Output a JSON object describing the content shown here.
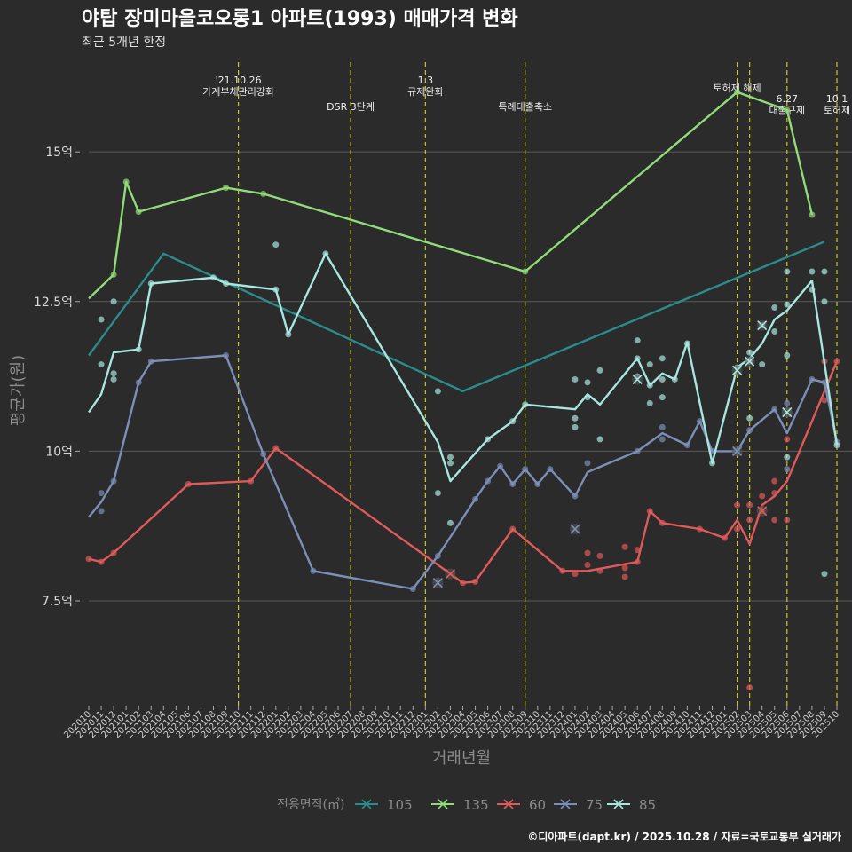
{
  "title": "야탑 장미마을코오롱1 아파트(1993) 매매가격 변화",
  "subtitle": "최근 5개년 한정",
  "caption": "©디아파트(dapt.kr) / 2025.10.28 / 자료=국토교통부 실거래가",
  "chart_data": {
    "type": "line",
    "xlabel": "거래년월",
    "ylabel": "평균가(원)",
    "ylim": [
      5.75,
      16.5
    ],
    "yticks": [
      7.5,
      10,
      12.5,
      15
    ],
    "ytick_labels": [
      "7.5억",
      "10억",
      "12.5억",
      "15억"
    ],
    "categories": [
      "202010",
      "202011",
      "202012",
      "202101",
      "202102",
      "202103",
      "202104",
      "202105",
      "202106",
      "202107",
      "202108",
      "202109",
      "202110",
      "202111",
      "202112",
      "202201",
      "202202",
      "202203",
      "202204",
      "202205",
      "202206",
      "202207",
      "202208",
      "202209",
      "202210",
      "202211",
      "202212",
      "202301",
      "202302",
      "202303",
      "202304",
      "202305",
      "202306",
      "202307",
      "202308",
      "202309",
      "202310",
      "202311",
      "202312",
      "202401",
      "202402",
      "202403",
      "202404",
      "202405",
      "202406",
      "202407",
      "202408",
      "202409",
      "202410",
      "202411",
      "202412",
      "202501",
      "202502",
      "202503",
      "202504",
      "202505",
      "202506",
      "202507",
      "202508",
      "202509",
      "202510"
    ],
    "events": [
      {
        "month": "202110",
        "label": "'21.10.26\n가계부채관리강화"
      },
      {
        "month": "202207",
        "label": "DSR 3단계"
      },
      {
        "month": "202301",
        "label": "1.3\n규제완화"
      },
      {
        "month": "202309",
        "label": "특례대출축소"
      },
      {
        "month": "202502",
        "label": "토허제 해제"
      },
      {
        "month": "202503",
        "label": ""
      },
      {
        "month": "202506",
        "label": "6.27\n대출규제"
      },
      {
        "month": "202510",
        "label": "10.1\n토허제"
      }
    ],
    "legend_title": "전용면적(㎡)",
    "series": [
      {
        "name": "105",
        "color": "#2a8c8c",
        "line": [
          [
            "202010",
            11.6
          ],
          [
            "202104",
            13.3
          ],
          [
            "202304",
            11.0
          ],
          [
            "202509",
            13.5
          ]
        ],
        "points": [],
        "markers": []
      },
      {
        "name": "135",
        "color": "#8fdc78",
        "line": [
          [
            "202010",
            12.55
          ],
          [
            "202012",
            12.95
          ],
          [
            "202101",
            14.5
          ],
          [
            "202102",
            14.0
          ],
          [
            "202109",
            14.4
          ],
          [
            "202112",
            14.3
          ],
          [
            "202309",
            13.0
          ],
          [
            "202502",
            16.0
          ],
          [
            "202506",
            15.7
          ],
          [
            "202508",
            13.95
          ]
        ],
        "points": [
          [
            "202012",
            12.95
          ],
          [
            "202101",
            14.5
          ],
          [
            "202102",
            14.0
          ],
          [
            "202109",
            14.4
          ],
          [
            "202112",
            14.3
          ],
          [
            "202309",
            13.0
          ],
          [
            "202502",
            16.0
          ],
          [
            "202506",
            15.7
          ],
          [
            "202508",
            13.95
          ]
        ],
        "markers": []
      },
      {
        "name": "60",
        "color": "#e05a5a",
        "line": [
          [
            "202010",
            8.2
          ],
          [
            "202011",
            8.15
          ],
          [
            "202012",
            8.3
          ],
          [
            "202106",
            9.45
          ],
          [
            "202111",
            9.5
          ],
          [
            "202201",
            10.05
          ],
          [
            "202304",
            7.8
          ],
          [
            "202305",
            7.82
          ],
          [
            "202308",
            8.7
          ],
          [
            "202312",
            8.0
          ],
          [
            "202402",
            8.0
          ],
          [
            "202406",
            8.15
          ],
          [
            "202407",
            9.0
          ],
          [
            "202408",
            8.8
          ],
          [
            "202411",
            8.7
          ],
          [
            "202501",
            8.55
          ],
          [
            "202502",
            8.85
          ],
          [
            "202503",
            8.45
          ],
          [
            "202504",
            9.1
          ],
          [
            "202505",
            9.25
          ],
          [
            "202506",
            9.5
          ],
          [
            "202510",
            11.5
          ]
        ],
        "points": [
          [
            "202010",
            8.2
          ],
          [
            "202011",
            8.15
          ],
          [
            "202012",
            8.3
          ],
          [
            "202106",
            9.45
          ],
          [
            "202111",
            9.5
          ],
          [
            "202201",
            10.05
          ],
          [
            "202304",
            7.8
          ],
          [
            "202305",
            7.82
          ],
          [
            "202308",
            8.7
          ],
          [
            "202312",
            8.0
          ],
          [
            "202401",
            7.95
          ],
          [
            "202402",
            8.1
          ],
          [
            "202402",
            8.3
          ],
          [
            "202403",
            8.0
          ],
          [
            "202403",
            8.25
          ],
          [
            "202405",
            7.9
          ],
          [
            "202405",
            8.05
          ],
          [
            "202405",
            8.4
          ],
          [
            "202406",
            8.15
          ],
          [
            "202406",
            8.35
          ],
          [
            "202407",
            9.0
          ],
          [
            "202408",
            8.8
          ],
          [
            "202411",
            8.7
          ],
          [
            "202501",
            8.55
          ],
          [
            "202502",
            8.7
          ],
          [
            "202502",
            9.1
          ],
          [
            "202503",
            6.05
          ],
          [
            "202503",
            8.85
          ],
          [
            "202503",
            9.1
          ],
          [
            "202504",
            9.0
          ],
          [
            "202504",
            9.25
          ],
          [
            "202505",
            8.85
          ],
          [
            "202505",
            9.3
          ],
          [
            "202505",
            9.5
          ],
          [
            "202506",
            8.85
          ],
          [
            "202506",
            10.2
          ],
          [
            "202509",
            10.85
          ],
          [
            "202509",
            11.5
          ],
          [
            "202510",
            11.5
          ]
        ],
        "markers": [
          [
            "202303",
            7.95
          ],
          [
            "202504",
            9.0
          ]
        ]
      },
      {
        "name": "75",
        "color": "#7b8fb8",
        "line": [
          [
            "202010",
            8.9
          ],
          [
            "202011",
            9.15
          ],
          [
            "202012",
            9.5
          ],
          [
            "202102",
            11.15
          ],
          [
            "202103",
            11.5
          ],
          [
            "202109",
            11.6
          ],
          [
            "202112",
            9.95
          ],
          [
            "202204",
            8.0
          ],
          [
            "202212",
            7.7
          ],
          [
            "202302",
            8.25
          ],
          [
            "202305",
            9.2
          ],
          [
            "202306",
            9.5
          ],
          [
            "202307",
            9.75
          ],
          [
            "202308",
            9.45
          ],
          [
            "202309",
            9.7
          ],
          [
            "202310",
            9.45
          ],
          [
            "202311",
            9.7
          ],
          [
            "202401",
            9.25
          ],
          [
            "202402",
            9.65
          ],
          [
            "202406",
            10.0
          ],
          [
            "202408",
            10.3
          ],
          [
            "202410",
            10.1
          ],
          [
            "202411",
            10.5
          ],
          [
            "202412",
            10.0
          ],
          [
            "202502",
            10.0
          ],
          [
            "202503",
            10.35
          ],
          [
            "202505",
            10.7
          ],
          [
            "202506",
            10.3
          ],
          [
            "202508",
            11.2
          ],
          [
            "202509",
            11.15
          ],
          [
            "202510",
            10.15
          ]
        ],
        "points": [
          [
            "202011",
            9.0
          ],
          [
            "202011",
            9.3
          ],
          [
            "202012",
            9.5
          ],
          [
            "202102",
            11.15
          ],
          [
            "202103",
            11.5
          ],
          [
            "202109",
            11.6
          ],
          [
            "202112",
            9.95
          ],
          [
            "202204",
            8.0
          ],
          [
            "202212",
            7.7
          ],
          [
            "202302",
            8.25
          ],
          [
            "202305",
            9.2
          ],
          [
            "202306",
            9.5
          ],
          [
            "202307",
            9.75
          ],
          [
            "202308",
            9.45
          ],
          [
            "202309",
            9.7
          ],
          [
            "202310",
            9.45
          ],
          [
            "202311",
            9.7
          ],
          [
            "202401",
            9.25
          ],
          [
            "202402",
            9.8
          ],
          [
            "202406",
            10.0
          ],
          [
            "202408",
            10.2
          ],
          [
            "202408",
            10.4
          ],
          [
            "202410",
            10.1
          ],
          [
            "202411",
            10.5
          ],
          [
            "202412",
            10.0
          ],
          [
            "202502",
            10.0
          ],
          [
            "202503",
            10.35
          ],
          [
            "202505",
            10.7
          ],
          [
            "202506",
            9.7
          ],
          [
            "202506",
            10.8
          ],
          [
            "202508",
            11.2
          ],
          [
            "202509",
            11.15
          ],
          [
            "202510",
            10.15
          ]
        ],
        "markers": [
          [
            "202302",
            7.8
          ],
          [
            "202401",
            8.7
          ],
          [
            "202502",
            10.0
          ],
          [
            "202506",
            10.65
          ]
        ]
      },
      {
        "name": "85",
        "color": "#a8e6e0",
        "line": [
          [
            "202010",
            10.65
          ],
          [
            "202011",
            10.95
          ],
          [
            "202012",
            11.65
          ],
          [
            "202102",
            11.7
          ],
          [
            "202103",
            12.8
          ],
          [
            "202108",
            12.9
          ],
          [
            "202109",
            12.8
          ],
          [
            "202201",
            12.7
          ],
          [
            "202202",
            11.95
          ],
          [
            "202205",
            13.3
          ],
          [
            "202302",
            10.15
          ],
          [
            "202303",
            9.5
          ],
          [
            "202306",
            10.2
          ],
          [
            "202308",
            10.5
          ],
          [
            "202309",
            10.78
          ],
          [
            "202401",
            10.7
          ],
          [
            "202402",
            10.95
          ],
          [
            "202403",
            10.78
          ],
          [
            "202406",
            11.55
          ],
          [
            "202407",
            11.1
          ],
          [
            "202408",
            11.3
          ],
          [
            "202409",
            11.2
          ],
          [
            "202410",
            11.82
          ],
          [
            "202412",
            9.8
          ],
          [
            "202502",
            11.4
          ],
          [
            "202503",
            11.55
          ],
          [
            "202504",
            11.8
          ],
          [
            "202505",
            12.2
          ],
          [
            "202506",
            12.35
          ],
          [
            "202508",
            12.85
          ],
          [
            "202510",
            10.1
          ]
        ],
        "points": [
          [
            "202011",
            11.45
          ],
          [
            "202011",
            12.2
          ],
          [
            "202012",
            11.2
          ],
          [
            "202012",
            11.3
          ],
          [
            "202012",
            12.5
          ],
          [
            "202102",
            11.7
          ],
          [
            "202103",
            12.8
          ],
          [
            "202108",
            12.9
          ],
          [
            "202109",
            12.8
          ],
          [
            "202201",
            12.7
          ],
          [
            "202201",
            13.45
          ],
          [
            "202202",
            11.95
          ],
          [
            "202205",
            13.3
          ],
          [
            "202302",
            9.3
          ],
          [
            "202302",
            11.0
          ],
          [
            "202303",
            9.8
          ],
          [
            "202303",
            9.9
          ],
          [
            "202303",
            8.8
          ],
          [
            "202306",
            10.2
          ],
          [
            "202308",
            10.5
          ],
          [
            "202309",
            10.78
          ],
          [
            "202401",
            10.4
          ],
          [
            "202401",
            10.55
          ],
          [
            "202401",
            11.2
          ],
          [
            "202402",
            10.9
          ],
          [
            "202402",
            11.15
          ],
          [
            "202403",
            10.2
          ],
          [
            "202403",
            11.35
          ],
          [
            "202406",
            11.55
          ],
          [
            "202406",
            11.85
          ],
          [
            "202406",
            11.25
          ],
          [
            "202407",
            10.8
          ],
          [
            "202407",
            11.1
          ],
          [
            "202407",
            11.45
          ],
          [
            "202408",
            10.9
          ],
          [
            "202408",
            11.2
          ],
          [
            "202408",
            11.55
          ],
          [
            "202409",
            11.2
          ],
          [
            "202410",
            11.8
          ],
          [
            "202412",
            9.8
          ],
          [
            "202502",
            11.4
          ],
          [
            "202503",
            11.5
          ],
          [
            "202503",
            11.65
          ],
          [
            "202503",
            10.55
          ],
          [
            "202504",
            11.45
          ],
          [
            "202504",
            12.1
          ],
          [
            "202505",
            12.0
          ],
          [
            "202505",
            12.4
          ],
          [
            "202506",
            9.9
          ],
          [
            "202506",
            11.6
          ],
          [
            "202506",
            12.45
          ],
          [
            "202506",
            13.0
          ],
          [
            "202508",
            12.7
          ],
          [
            "202508",
            13.0
          ],
          [
            "202509",
            12.5
          ],
          [
            "202509",
            13.0
          ],
          [
            "202509",
            7.95
          ],
          [
            "202510",
            10.1
          ]
        ],
        "markers": [
          [
            "202406",
            11.2
          ],
          [
            "202502",
            11.35
          ],
          [
            "202503",
            11.5
          ],
          [
            "202504",
            12.1
          ],
          [
            "202506",
            10.65
          ]
        ]
      }
    ]
  }
}
